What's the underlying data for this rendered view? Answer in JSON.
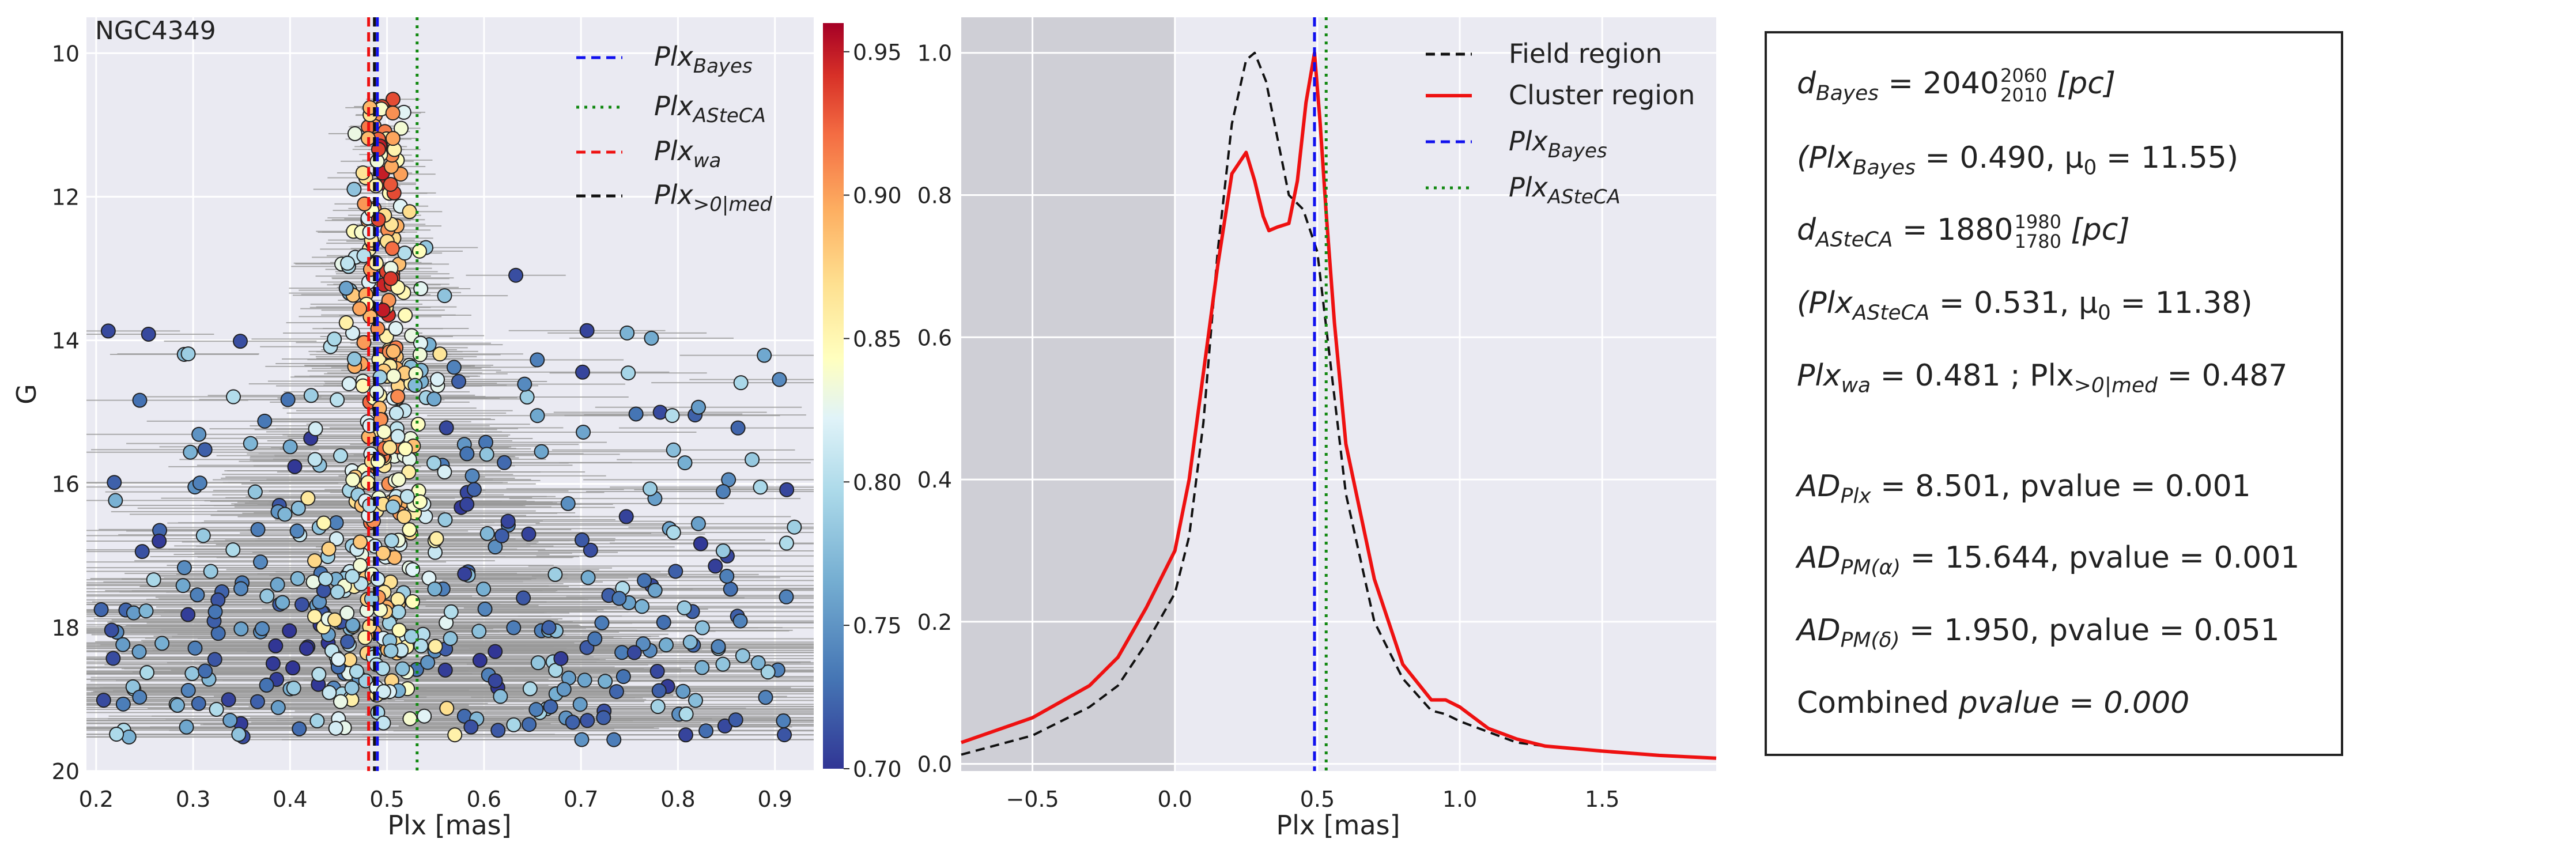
{
  "chart_data": [
    {
      "type": "scatter",
      "title": "NGC4349",
      "xlabel": "Plx [mas]",
      "ylabel": "G",
      "xlim": [
        0.19,
        0.94
      ],
      "ylim": [
        20,
        9.5
      ],
      "y_inverted": true,
      "x_ticks": [
        "0.2",
        "0.3",
        "0.4",
        "0.5",
        "0.6",
        "0.7",
        "0.8",
        "0.9"
      ],
      "y_ticks": [
        "10",
        "12",
        "14",
        "16",
        "18",
        "20"
      ],
      "colorbar": {
        "range": [
          0.7,
          0.96
        ],
        "ticks": [
          "0.70",
          "0.75",
          "0.80",
          "0.85",
          "0.90",
          "0.95"
        ],
        "colormap": "RdYlBu_r"
      },
      "reference_lines": [
        {
          "name": "Plx_Bayes",
          "label": "Plx",
          "sub": "Bayes",
          "x": 0.49,
          "color": "#1010ee",
          "style": "dashed"
        },
        {
          "name": "Plx_ASteCA",
          "label": "Plx",
          "sub": "ASteCA",
          "x": 0.531,
          "color": "#118811",
          "style": "dotted"
        },
        {
          "name": "Plx_wa",
          "label": "Plx",
          "sub": "wa",
          "x": 0.481,
          "color": "#ee1111",
          "style": "dashed"
        },
        {
          "name": "Plx_>0|med",
          "label": "Plx",
          "sub": ">0|med",
          "x": 0.487,
          "color": "#111111",
          "style": "dashed"
        }
      ],
      "error_bar_color": "#999999",
      "points_note": "approximately 700 stars; x = parallax, y = G magnitude, colour = membership probability"
    },
    {
      "type": "line",
      "xlabel": "Plx [mas]",
      "ylabel": "",
      "xlim": [
        -0.75,
        1.9
      ],
      "ylim": [
        -0.01,
        1.05
      ],
      "x_ticks": [
        "−0.5",
        "0.0",
        "0.5",
        "1.0",
        "1.5"
      ],
      "y_ticks": [
        "0.0",
        "0.2",
        "0.4",
        "0.6",
        "0.8",
        "1.0"
      ],
      "shaded_region": {
        "x0": -0.75,
        "x1": 0.0,
        "color": "#cfcfd6"
      },
      "series": [
        {
          "name": "Field region",
          "color": "#111111",
          "style": "dashed",
          "x": [
            -0.75,
            -0.5,
            -0.3,
            -0.2,
            -0.1,
            0.0,
            0.05,
            0.1,
            0.15,
            0.2,
            0.25,
            0.28,
            0.32,
            0.36,
            0.4,
            0.45,
            0.5,
            0.55,
            0.6,
            0.7,
            0.8,
            0.9,
            0.95,
            1.0,
            1.1,
            1.2,
            1.3,
            1.5,
            1.7,
            1.9
          ],
          "y": [
            0.013,
            0.04,
            0.08,
            0.11,
            0.17,
            0.24,
            0.32,
            0.48,
            0.72,
            0.9,
            0.99,
            1.0,
            0.96,
            0.88,
            0.8,
            0.78,
            0.72,
            0.55,
            0.38,
            0.2,
            0.12,
            0.075,
            0.07,
            0.06,
            0.045,
            0.03,
            0.025,
            0.018,
            0.012,
            0.008
          ]
        },
        {
          "name": "Cluster region",
          "color": "#ee1111",
          "style": "solid",
          "x": [
            -0.75,
            -0.5,
            -0.3,
            -0.2,
            -0.1,
            0.0,
            0.05,
            0.1,
            0.15,
            0.2,
            0.25,
            0.28,
            0.31,
            0.33,
            0.36,
            0.4,
            0.43,
            0.46,
            0.49,
            0.51,
            0.53,
            0.56,
            0.6,
            0.7,
            0.8,
            0.9,
            0.95,
            1.0,
            1.1,
            1.2,
            1.3,
            1.5,
            1.7,
            1.9
          ],
          "y": [
            0.03,
            0.065,
            0.11,
            0.15,
            0.22,
            0.3,
            0.4,
            0.55,
            0.7,
            0.83,
            0.86,
            0.82,
            0.77,
            0.75,
            0.755,
            0.76,
            0.82,
            0.93,
            1.0,
            0.9,
            0.78,
            0.62,
            0.45,
            0.26,
            0.14,
            0.09,
            0.09,
            0.08,
            0.05,
            0.035,
            0.025,
            0.018,
            0.012,
            0.008
          ]
        }
      ],
      "reference_lines": [
        {
          "name": "Plx_Bayes",
          "label": "Plx",
          "sub": "Bayes",
          "x": 0.49,
          "color": "#1010ee",
          "style": "dashed"
        },
        {
          "name": "Plx_ASteCA",
          "label": "Plx",
          "sub": "ASteCA",
          "x": 0.531,
          "color": "#118811",
          "style": "dotted"
        }
      ]
    }
  ],
  "info": {
    "d_bayes_sym": "d",
    "d_bayes_sub": "Bayes",
    "d_bayes_val": " = 2040",
    "d_bayes_sup": "2060",
    "d_bayes_sub2": "2010",
    "d_bayes_unit": " [pc]",
    "plx_bayes_line": "(Plx",
    "plx_bayes_sub": "Bayes",
    "plx_bayes_rest": " = 0.490,  μ",
    "plx_bayes_mu_sub": "0",
    "plx_bayes_mu": " = 11.55)",
    "d_asteca_sym": "d",
    "d_asteca_sub": "ASteCA",
    "d_asteca_val": " = 1880",
    "d_asteca_sup": "1980",
    "d_asteca_sub2": "1780",
    "d_asteca_unit": " [pc]",
    "plx_asteca_line": "(Plx",
    "plx_asteca_sub": "ASteCA",
    "plx_asteca_rest": " = 0.531,  μ",
    "plx_asteca_mu_sub": "0",
    "plx_asteca_mu": " = 11.38)",
    "wa_sym": "Plx",
    "wa_sub": "wa",
    "wa_val": " = 0.481 ; Plx",
    "med_sub": ">0|med",
    "med_val": " = 0.487",
    "ad_plx_sym": "AD",
    "ad_plx_sub": "Plx",
    "ad_plx_val": " = 8.501,  pvalue = 0.001",
    "ad_pma_sym": "AD",
    "ad_pma_sub": "PM(α)",
    "ad_pma_val": " = 15.644,  pvalue = 0.001",
    "ad_pmd_sym": "AD",
    "ad_pmd_sub": "PM(δ)",
    "ad_pmd_val": " = 1.950,  pvalue = 0.051",
    "combined": "Combined ",
    "combined_val": "pvalue = 0.000"
  }
}
